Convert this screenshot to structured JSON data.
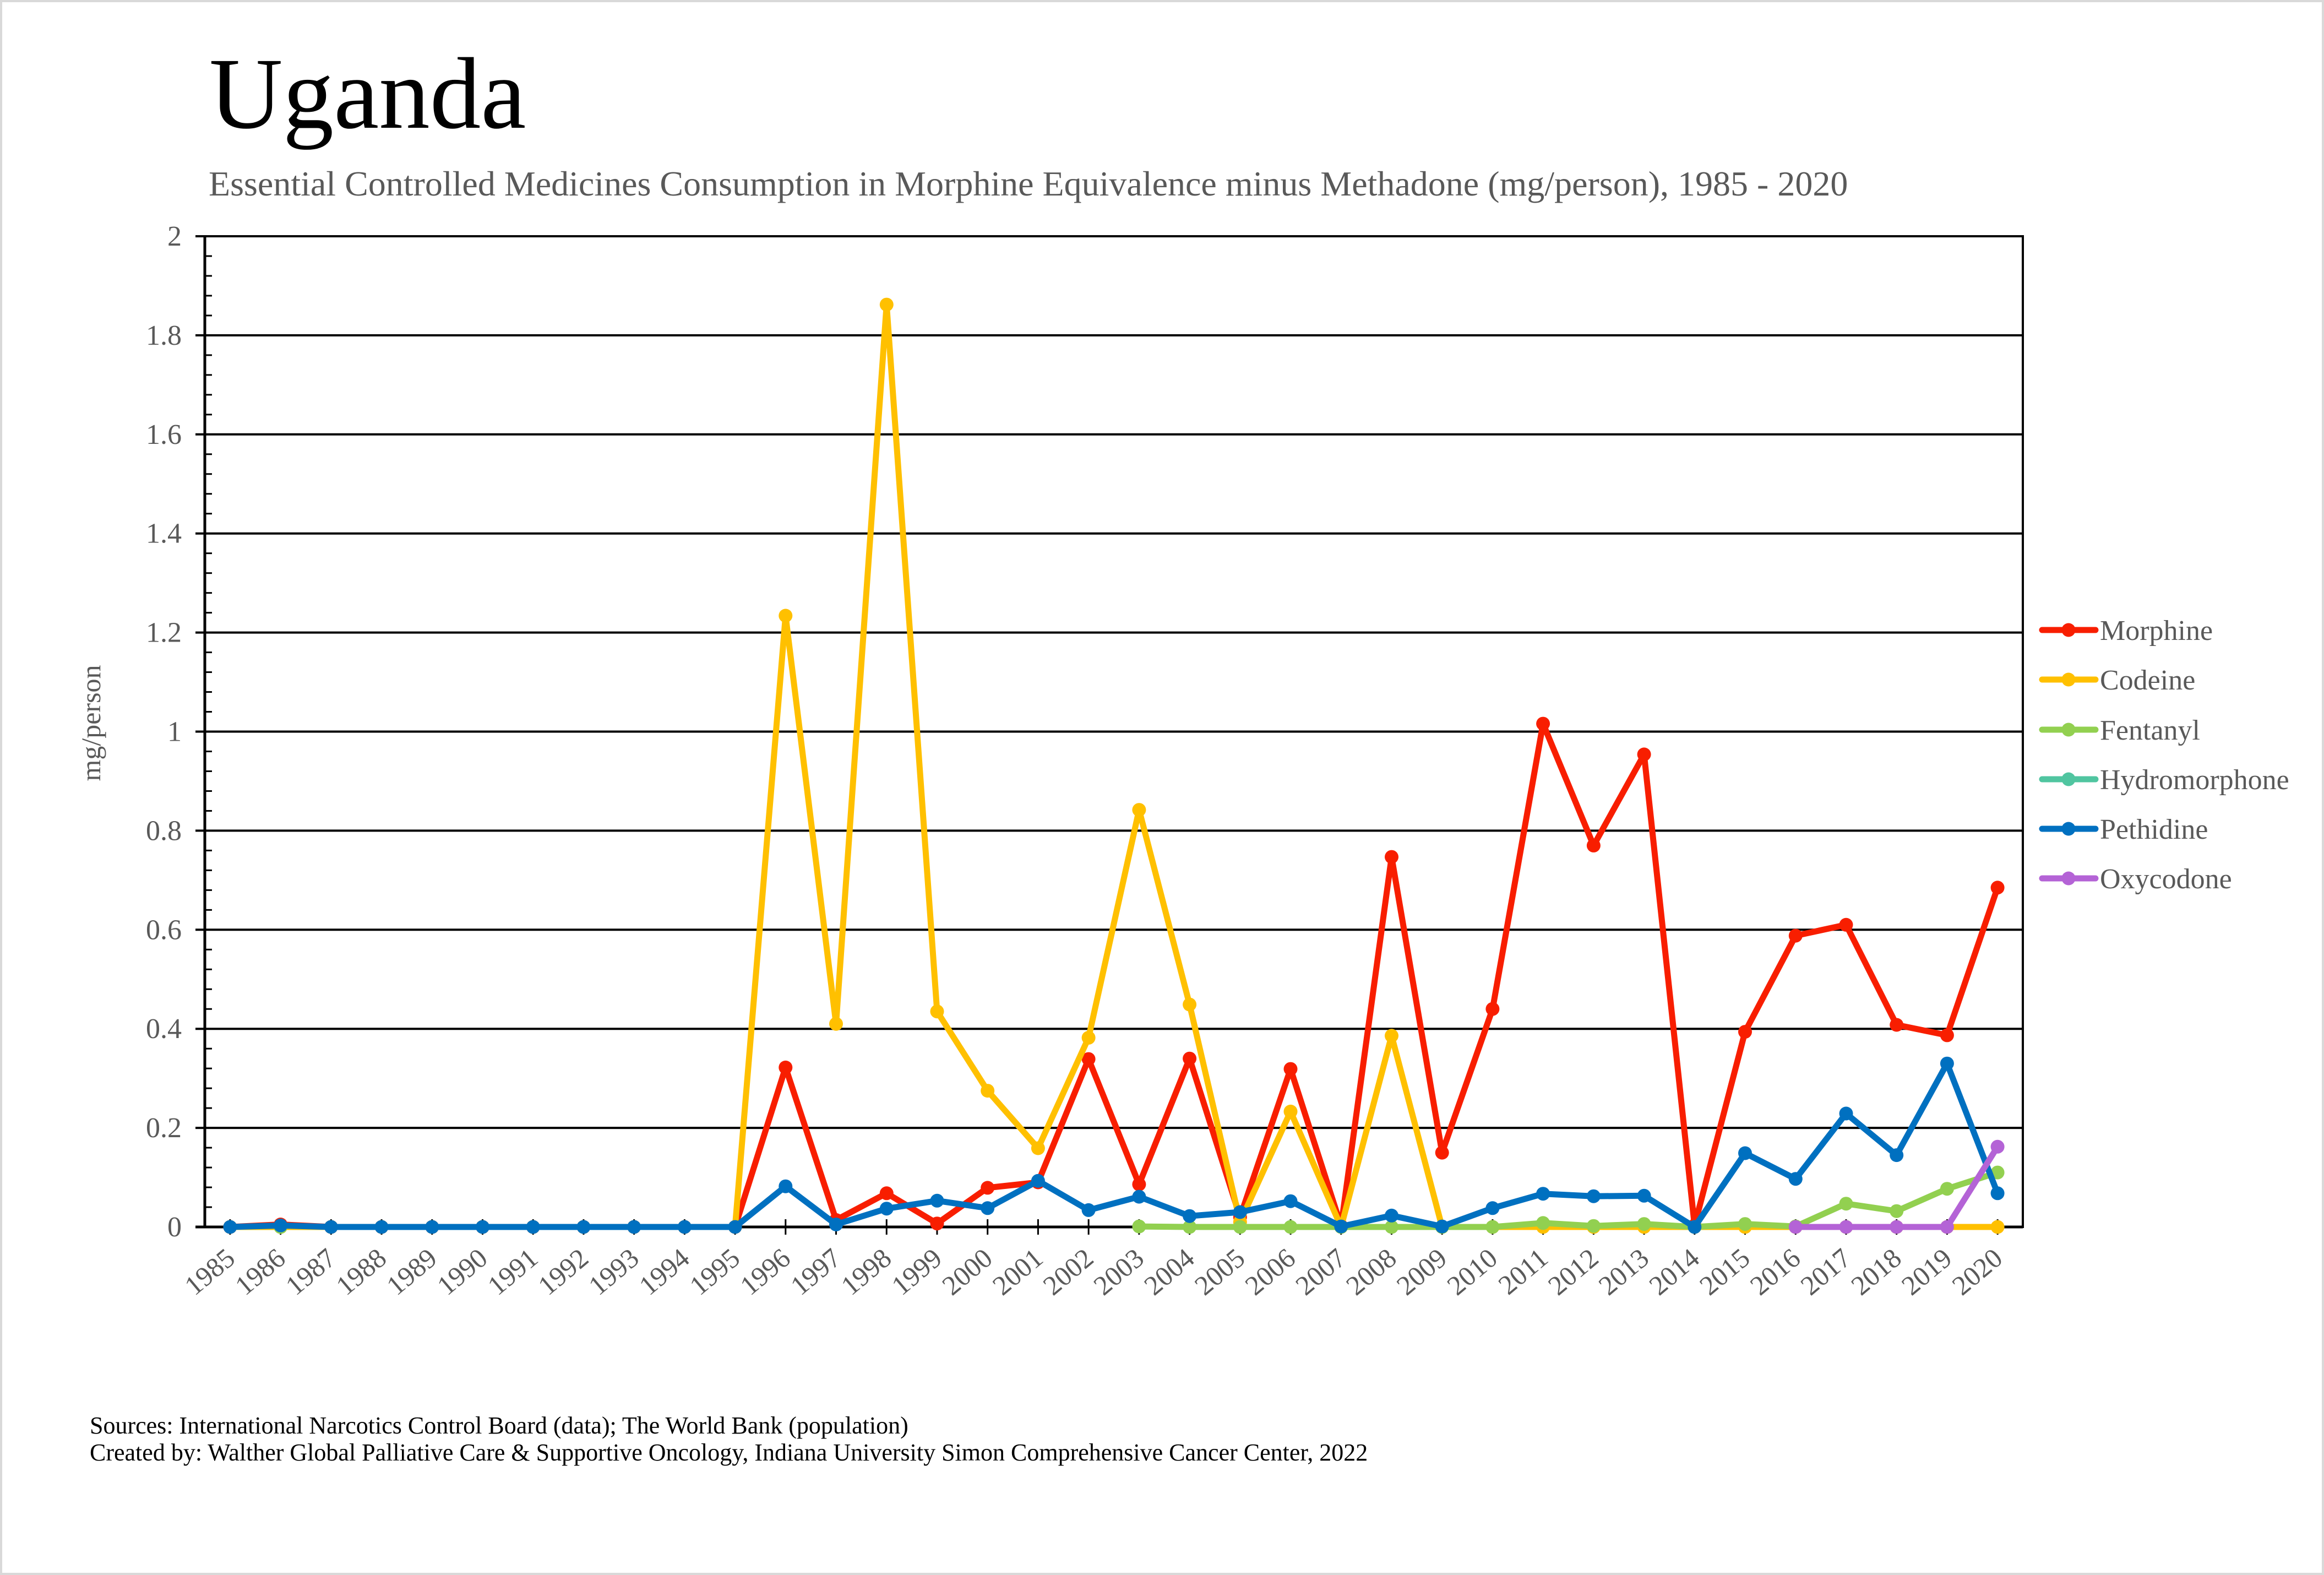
{
  "chart_data": {
    "type": "line",
    "title": "Uganda",
    "subtitle": "Essential Controlled Medicines Consumption in Morphine Equivalence minus Methadone (mg/person), 1985 - 2020",
    "xlabel": "",
    "ylabel": "mg/person",
    "ylim": [
      0,
      2
    ],
    "y_major_step": 0.2,
    "y_minor_step": 0.04,
    "y_tick_labels": [
      "0",
      "0.2",
      "0.4",
      "0.6",
      "0.8",
      "1",
      "1.2",
      "1.4",
      "1.6",
      "1.8",
      "2"
    ],
    "grid": "horizontal-major",
    "legend_position": "right",
    "categories": [
      "1985",
      "1986",
      "1987",
      "1988",
      "1989",
      "1990",
      "1991",
      "1992",
      "1993",
      "1994",
      "1995",
      "1996",
      "1997",
      "1998",
      "1999",
      "2000",
      "2001",
      "2002",
      "2003",
      "2004",
      "2005",
      "2006",
      "2007",
      "2008",
      "2009",
      "2010",
      "2011",
      "2012",
      "2013",
      "2014",
      "2015",
      "2016",
      "2017",
      "2018",
      "2019",
      "2020"
    ],
    "series": [
      {
        "name": "Morphine",
        "color": "#F81E00",
        "values": [
          0,
          0.005,
          0,
          0,
          0,
          0,
          0,
          0,
          0,
          0,
          0,
          0.322,
          0.014,
          0.068,
          0.007,
          0.079,
          0.09,
          0.339,
          0.086,
          0.34,
          0.02,
          0.319,
          0.002,
          0.747,
          0.15,
          0.44,
          1.016,
          0.77,
          0.954,
          0.003,
          0.394,
          0.588,
          0.61,
          0.408,
          0.387,
          0.685
        ]
      },
      {
        "name": "Codeine",
        "color": "#FFC000",
        "values": [
          0,
          0,
          0,
          0,
          0,
          0,
          0,
          0,
          0,
          0,
          0,
          1.234,
          0.41,
          1.862,
          0.435,
          0.275,
          0.159,
          0.382,
          0.842,
          0.449,
          0.01,
          0.233,
          0,
          0.386,
          0,
          0,
          0,
          0,
          0,
          0,
          0,
          0,
          0,
          0,
          0,
          0
        ]
      },
      {
        "name": "Fentanyl",
        "color": "#92D050",
        "values": [
          null,
          0,
          null,
          null,
          null,
          null,
          null,
          null,
          null,
          null,
          null,
          null,
          null,
          null,
          null,
          null,
          null,
          null,
          0.001,
          0,
          0,
          0,
          0,
          0,
          0,
          0,
          0.008,
          0.002,
          0.006,
          0,
          0.006,
          0.001,
          0.047,
          0.032,
          0.077,
          0.11
        ]
      },
      {
        "name": "Hydromorphone",
        "color": "#50C5A0",
        "values": [
          null,
          null,
          null,
          null,
          null,
          null,
          null,
          null,
          null,
          null,
          null,
          null,
          null,
          null,
          null,
          null,
          null,
          null,
          null,
          null,
          null,
          null,
          null,
          null,
          null,
          null,
          null,
          null,
          null,
          null,
          null,
          null,
          null,
          null,
          null,
          null
        ]
      },
      {
        "name": "Pethidine",
        "color": "#0070C0",
        "values": [
          0,
          0.003,
          0,
          0,
          0,
          0,
          0,
          0,
          0,
          0,
          0,
          0.082,
          0.005,
          0.037,
          0.053,
          0.038,
          0.093,
          0.034,
          0.061,
          0.022,
          0.03,
          0.052,
          0.001,
          0.023,
          0.001,
          0.038,
          0.067,
          0.062,
          0.063,
          0,
          0.149,
          0.097,
          0.229,
          0.145,
          0.33,
          0.068
        ]
      },
      {
        "name": "Oxycodone",
        "color": "#B463D6",
        "values": [
          null,
          null,
          null,
          null,
          null,
          null,
          null,
          null,
          null,
          null,
          null,
          null,
          null,
          null,
          null,
          null,
          null,
          null,
          null,
          null,
          null,
          null,
          null,
          null,
          null,
          null,
          null,
          null,
          null,
          null,
          null,
          0,
          0,
          0,
          0,
          0.162
        ]
      }
    ]
  },
  "footer": {
    "sources": "Sources: International Narcotics Control Board (data); The World Bank (population)",
    "created_by": "Created by: Walther Global Palliative Care & Supportive Oncology, Indiana University Simon Comprehensive Cancer Center, 2022"
  }
}
